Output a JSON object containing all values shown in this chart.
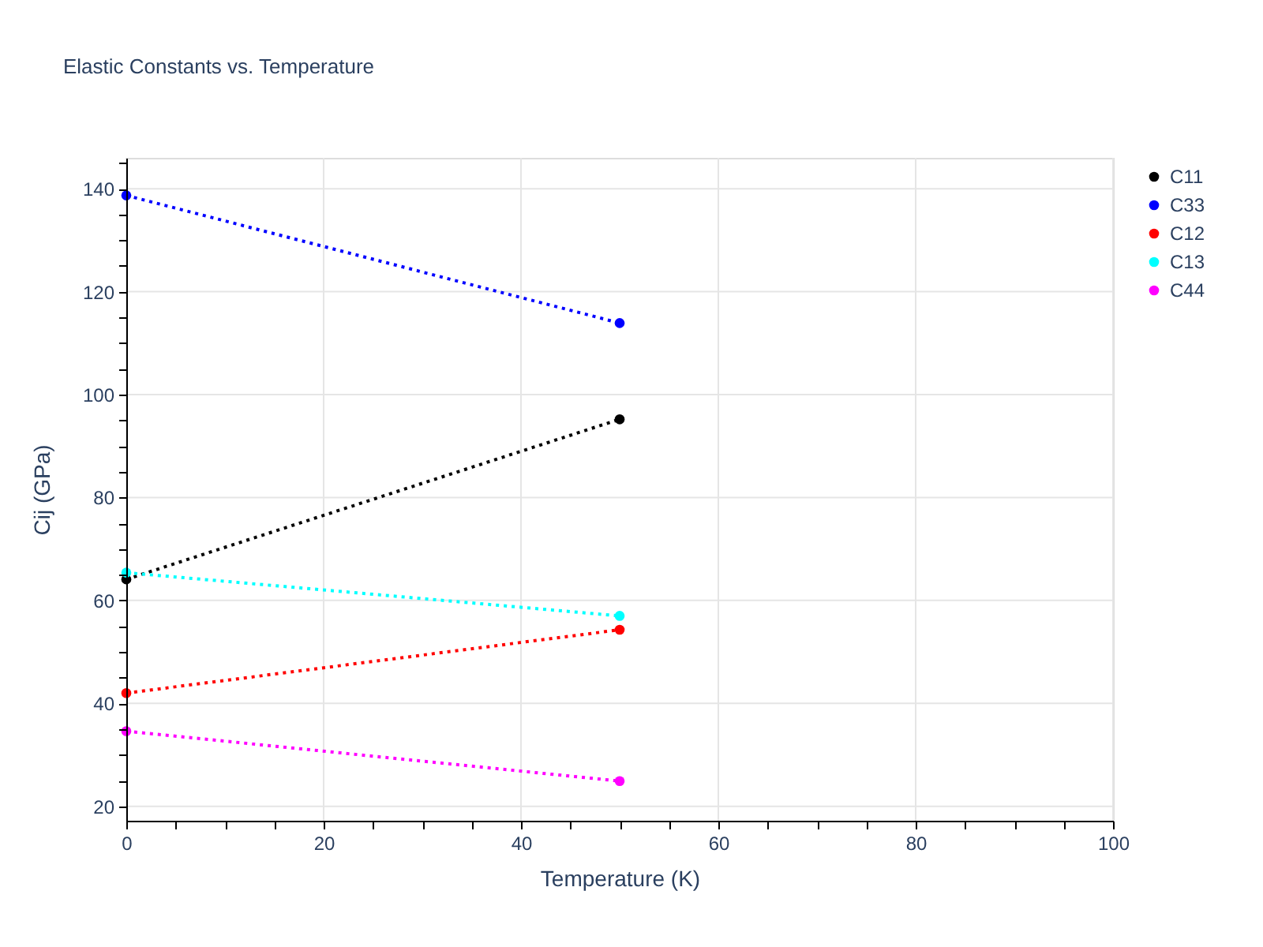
{
  "chart_data": {
    "type": "line",
    "title": "Elastic Constants vs. Temperature",
    "xlabel": "Temperature (K)",
    "ylabel": "Cij (GPa)",
    "x": [
      0,
      50
    ],
    "series": [
      {
        "name": "C11",
        "color": "#000000",
        "values": [
          64.1,
          95.2
        ]
      },
      {
        "name": "C33",
        "color": "#0000ff",
        "values": [
          138.7,
          113.9
        ]
      },
      {
        "name": "C12",
        "color": "#ff0000",
        "values": [
          42.0,
          54.3
        ]
      },
      {
        "name": "C13",
        "color": "#00ffff",
        "values": [
          65.4,
          57.0
        ]
      },
      {
        "name": "C44",
        "color": "#ff00ff",
        "values": [
          34.6,
          24.9
        ]
      }
    ],
    "xlim": [
      0,
      100
    ],
    "ylim": [
      17.2,
      146
    ],
    "xticks": [
      0,
      {
        "value": 5,
        "label": null
      },
      {
        "value": 10,
        "label": null
      },
      {
        "value": 15,
        "label": null
      },
      20,
      {
        "value": 25,
        "label": null
      },
      {
        "value": 30,
        "label": null
      },
      {
        "value": 35,
        "label": null
      },
      40,
      {
        "value": 45,
        "label": null
      },
      {
        "value": 50,
        "label": null
      },
      {
        "value": 55,
        "label": null
      },
      60,
      {
        "value": 65,
        "label": null
      },
      {
        "value": 70,
        "label": null
      },
      {
        "value": 75,
        "label": null
      },
      80,
      {
        "value": 85,
        "label": null
      },
      {
        "value": 90,
        "label": null
      },
      {
        "value": 95,
        "label": null
      },
      100
    ],
    "yticks": [
      20,
      {
        "value": 25,
        "label": null
      },
      {
        "value": 30,
        "label": null
      },
      {
        "value": 35,
        "label": null
      },
      40,
      {
        "value": 45,
        "label": null
      },
      {
        "value": 50,
        "label": null
      },
      {
        "value": 55,
        "label": null
      },
      60,
      {
        "value": 65,
        "label": null
      },
      {
        "value": 70,
        "label": null
      },
      {
        "value": 75,
        "label": null
      },
      80,
      {
        "value": 85,
        "label": null
      },
      {
        "value": 90,
        "label": null
      },
      {
        "value": 95,
        "label": null
      },
      100,
      {
        "value": 105,
        "label": null
      },
      {
        "value": 110,
        "label": null
      },
      {
        "value": 115,
        "label": null
      },
      120,
      {
        "value": 125,
        "label": null
      },
      {
        "value": 130,
        "label": null
      },
      {
        "value": 135,
        "label": null
      },
      140,
      {
        "value": 145,
        "label": null
      }
    ],
    "grid": true,
    "legend": "top right",
    "marker": "circle",
    "line_style": "dotted"
  }
}
